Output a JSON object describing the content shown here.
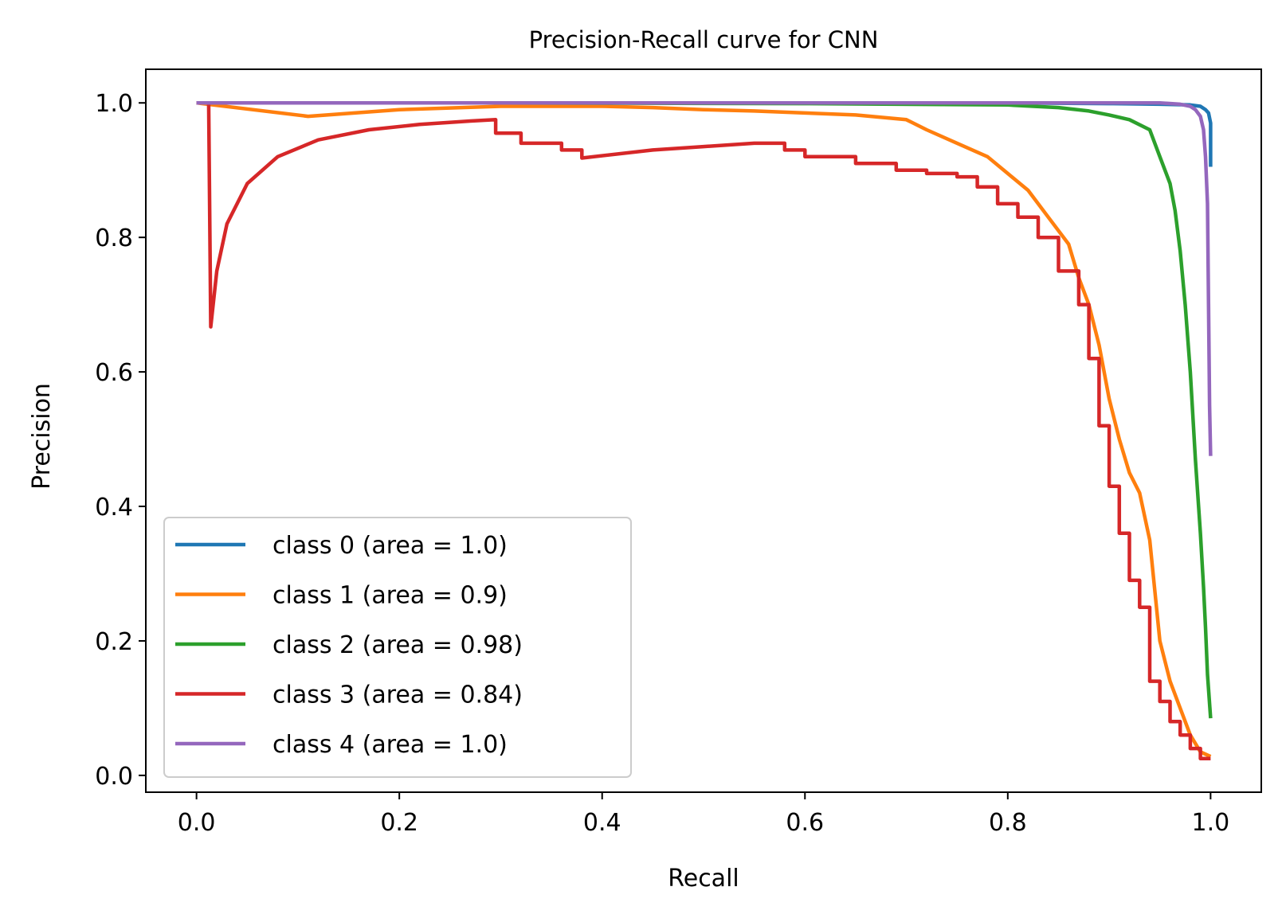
{
  "chart_data": {
    "type": "line",
    "title": "Precision-Recall curve for CNN",
    "xlabel": "Recall",
    "ylabel": "Precision",
    "xlim": [
      -0.05,
      1.05
    ],
    "ylim": [
      -0.025,
      1.05
    ],
    "xticks": [
      0.0,
      0.2,
      0.4,
      0.6,
      0.8,
      1.0
    ],
    "xtick_labels": [
      "0.0",
      "0.2",
      "0.4",
      "0.6",
      "0.8",
      "1.0"
    ],
    "yticks": [
      0.0,
      0.2,
      0.4,
      0.6,
      0.8,
      1.0
    ],
    "ytick_labels": [
      "0.0",
      "0.2",
      "0.4",
      "0.6",
      "0.8",
      "1.0"
    ],
    "grid": false,
    "legend_position": "lower-left",
    "series": [
      {
        "name": "class 0 (area = 1.0)",
        "color": "#1f77b4",
        "x": [
          0.0,
          0.2,
          0.5,
          0.8,
          0.9,
          0.95,
          0.98,
          0.99,
          0.995,
          0.998,
          1.0,
          1.0
        ],
        "y": [
          1.0,
          1.0,
          1.0,
          1.0,
          0.999,
          0.998,
          0.997,
          0.995,
          0.99,
          0.985,
          0.97,
          0.905
        ]
      },
      {
        "name": "class 1 (area = 0.9)",
        "color": "#ff7f0e",
        "x": [
          0.0,
          0.11,
          0.2,
          0.3,
          0.4,
          0.45,
          0.5,
          0.55,
          0.6,
          0.65,
          0.7,
          0.72,
          0.75,
          0.78,
          0.8,
          0.82,
          0.84,
          0.86,
          0.87,
          0.88,
          0.89,
          0.9,
          0.91,
          0.92,
          0.93,
          0.94,
          0.95,
          0.96,
          0.97,
          0.98,
          0.99,
          1.0
        ],
        "y": [
          1.0,
          0.98,
          0.99,
          0.995,
          0.995,
          0.993,
          0.99,
          0.988,
          0.985,
          0.982,
          0.975,
          0.96,
          0.94,
          0.92,
          0.895,
          0.87,
          0.83,
          0.79,
          0.74,
          0.7,
          0.64,
          0.56,
          0.5,
          0.45,
          0.42,
          0.35,
          0.2,
          0.14,
          0.1,
          0.06,
          0.035,
          0.028
        ]
      },
      {
        "name": "class 2 (area = 0.98)",
        "color": "#2ca02c",
        "x": [
          0.0,
          0.3,
          0.6,
          0.8,
          0.85,
          0.88,
          0.9,
          0.92,
          0.94,
          0.95,
          0.96,
          0.965,
          0.97,
          0.975,
          0.98,
          0.985,
          0.99,
          0.993,
          0.995,
          0.997,
          1.0
        ],
        "y": [
          1.0,
          1.0,
          0.999,
          0.997,
          0.993,
          0.988,
          0.982,
          0.975,
          0.96,
          0.92,
          0.88,
          0.84,
          0.78,
          0.7,
          0.6,
          0.47,
          0.36,
          0.28,
          0.22,
          0.15,
          0.085
        ]
      },
      {
        "name": "class 3 (area = 0.84)",
        "color": "#d62728",
        "x": [
          0.0,
          0.012,
          0.014,
          0.02,
          0.03,
          0.05,
          0.08,
          0.12,
          0.17,
          0.22,
          0.27,
          0.295,
          0.295,
          0.32,
          0.32,
          0.36,
          0.36,
          0.38,
          0.38,
          0.45,
          0.5,
          0.55,
          0.58,
          0.58,
          0.6,
          0.6,
          0.65,
          0.65,
          0.69,
          0.69,
          0.72,
          0.72,
          0.75,
          0.75,
          0.77,
          0.77,
          0.79,
          0.79,
          0.81,
          0.81,
          0.83,
          0.83,
          0.85,
          0.85,
          0.87,
          0.87,
          0.88,
          0.88,
          0.89,
          0.89,
          0.9,
          0.9,
          0.91,
          0.91,
          0.92,
          0.92,
          0.93,
          0.93,
          0.94,
          0.94,
          0.95,
          0.95,
          0.96,
          0.96,
          0.97,
          0.97,
          0.98,
          0.98,
          0.99,
          0.99,
          1.0
        ],
        "y": [
          1.0,
          1.0,
          0.667,
          0.75,
          0.82,
          0.88,
          0.92,
          0.945,
          0.96,
          0.968,
          0.973,
          0.975,
          0.955,
          0.955,
          0.94,
          0.94,
          0.93,
          0.93,
          0.918,
          0.93,
          0.935,
          0.94,
          0.94,
          0.93,
          0.93,
          0.92,
          0.92,
          0.91,
          0.91,
          0.9,
          0.9,
          0.895,
          0.895,
          0.89,
          0.89,
          0.875,
          0.875,
          0.85,
          0.85,
          0.83,
          0.83,
          0.8,
          0.8,
          0.75,
          0.75,
          0.7,
          0.7,
          0.62,
          0.62,
          0.52,
          0.52,
          0.43,
          0.43,
          0.36,
          0.36,
          0.29,
          0.29,
          0.25,
          0.25,
          0.14,
          0.14,
          0.11,
          0.11,
          0.08,
          0.08,
          0.06,
          0.06,
          0.04,
          0.04,
          0.025,
          0.025
        ]
      },
      {
        "name": "class 4 (area = 1.0)",
        "color": "#9467bd",
        "x": [
          0.0,
          0.3,
          0.6,
          0.9,
          0.95,
          0.97,
          0.98,
          0.985,
          0.99,
          0.993,
          0.995,
          0.997,
          0.998,
          0.999,
          1.0
        ],
        "y": [
          1.0,
          1.0,
          1.0,
          1.0,
          1.0,
          0.998,
          0.995,
          0.99,
          0.98,
          0.96,
          0.92,
          0.85,
          0.7,
          0.55,
          0.475
        ]
      }
    ]
  }
}
